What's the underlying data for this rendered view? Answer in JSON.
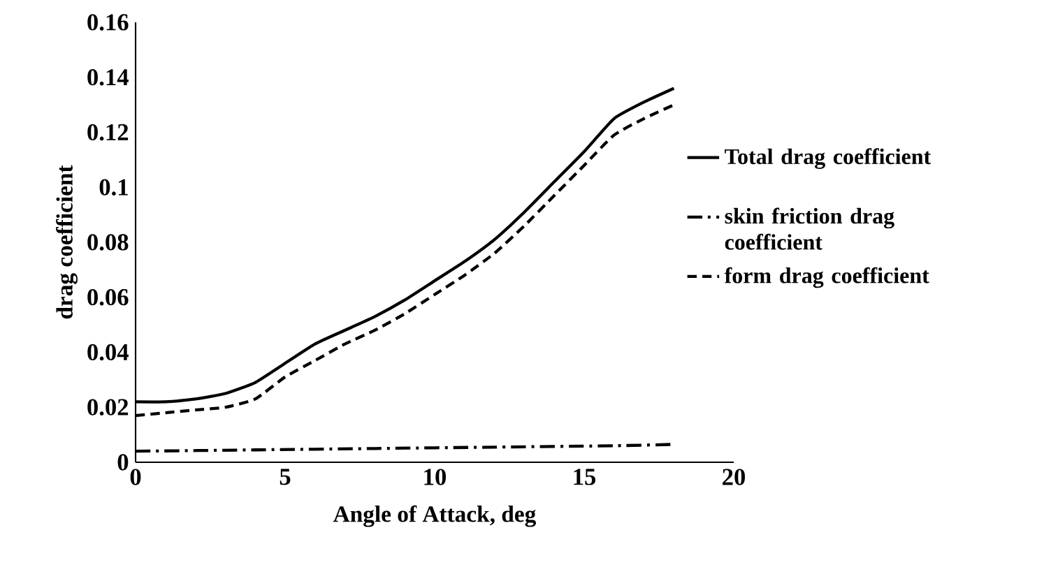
{
  "chart_data": {
    "type": "line",
    "xlabel": "Angle of Attack, deg",
    "ylabel": "drag coefficient",
    "xlim": [
      0,
      20
    ],
    "xticks": [
      0,
      5,
      10,
      15,
      20
    ],
    "ylim": [
      0,
      0.16
    ],
    "yticks": [
      0,
      0.02,
      0.04,
      0.06,
      0.08,
      0.1,
      0.12,
      0.14,
      0.16
    ],
    "legend": "right",
    "grid": false,
    "series": [
      {
        "name": "Total drag coefficient",
        "color": "#000000",
        "line_style": "solid",
        "x": [
          0,
          1,
          2,
          3,
          4,
          5,
          6,
          7,
          8,
          9,
          10,
          11,
          12,
          13,
          14,
          15,
          16,
          17,
          18
        ],
        "values": [
          0.022,
          0.022,
          0.023,
          0.025,
          0.029,
          0.036,
          0.043,
          0.048,
          0.053,
          0.059,
          0.066,
          0.073,
          0.081,
          0.091,
          0.102,
          0.113,
          0.125,
          0.131,
          0.136
        ]
      },
      {
        "name": "skin friction drag coefficient",
        "color": "#000000",
        "line_style": "dashdot",
        "x": [
          0,
          4,
          8,
          12,
          16,
          18
        ],
        "values": [
          0.004,
          0.0045,
          0.005,
          0.0055,
          0.006,
          0.0065
        ]
      },
      {
        "name": "form drag coefficient",
        "color": "#000000",
        "line_style": "dashed",
        "x": [
          0,
          1,
          2,
          3,
          4,
          5,
          6,
          7,
          8,
          9,
          10,
          11,
          12,
          13,
          14,
          15,
          16,
          17,
          18
        ],
        "values": [
          0.017,
          0.018,
          0.019,
          0.02,
          0.023,
          0.031,
          0.037,
          0.043,
          0.048,
          0.054,
          0.061,
          0.068,
          0.076,
          0.086,
          0.097,
          0.108,
          0.119,
          0.125,
          0.13
        ]
      }
    ]
  }
}
